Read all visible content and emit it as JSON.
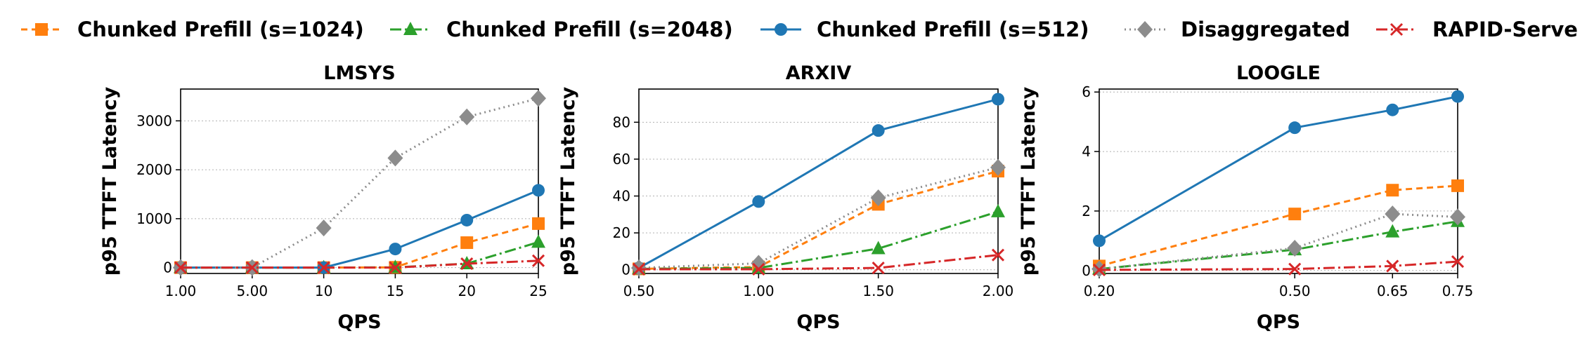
{
  "legend": [
    {
      "name": "Chunked Prefill (s=1024)",
      "color": "#ff7f0e",
      "dash": "9,6",
      "marker": "square"
    },
    {
      "name": "Chunked Prefill (s=2048)",
      "color": "#2ca02c",
      "dash": "16,5,3,5",
      "marker": "triangle"
    },
    {
      "name": "Chunked Prefill (s=512)",
      "color": "#1f77b4",
      "dash": "",
      "marker": "circle"
    },
    {
      "name": "Disaggregated",
      "color": "#8c8c8c",
      "dash": "2,5",
      "marker": "diamond"
    },
    {
      "name": "RAPID-Serve",
      "color": "#d62728",
      "dash": "16,5,3,5",
      "marker": "x"
    }
  ],
  "chart_data": [
    {
      "type": "line",
      "title": "LMSYS",
      "xlabel": "QPS",
      "ylabel": "p95 TTFT Latency",
      "x": [
        1,
        5,
        10,
        15,
        20,
        25
      ],
      "xticks": [
        "1.00",
        "5.00",
        "10",
        "15",
        "20",
        "25"
      ],
      "xscale": "categorical",
      "ylim": [
        -120,
        3650
      ],
      "yticks": [
        0,
        1000,
        2000,
        3000
      ],
      "yticklabels": [
        "0",
        "1000",
        "2000",
        "3000"
      ],
      "grid": "y",
      "series": [
        {
          "name": "Chunked Prefill (s=1024)",
          "values": [
            0,
            0,
            0,
            5,
            510,
            900
          ]
        },
        {
          "name": "Chunked Prefill (s=2048)",
          "values": [
            0,
            0,
            0,
            5,
            80,
            520
          ]
        },
        {
          "name": "Chunked Prefill (s=512)",
          "values": [
            0,
            0,
            0,
            380,
            970,
            1580
          ]
        },
        {
          "name": "Disaggregated",
          "values": [
            0,
            0,
            810,
            2240,
            3080,
            3460
          ]
        },
        {
          "name": "RAPID-Serve",
          "values": [
            0,
            0,
            0,
            0,
            80,
            140
          ]
        }
      ]
    },
    {
      "type": "line",
      "title": "ARXIV",
      "xlabel": "QPS",
      "ylabel": "p95 TTFT Latency",
      "x": [
        0.5,
        1.0,
        1.5,
        2.0
      ],
      "xticks": [
        "0.50",
        "1.00",
        "1.50",
        "2.00"
      ],
      "xscale": "linear",
      "ylim": [
        -2,
        98
      ],
      "yticks": [
        0,
        20,
        40,
        60,
        80
      ],
      "yticklabels": [
        "0",
        "20",
        "40",
        "60",
        "80"
      ],
      "grid": "y",
      "series": [
        {
          "name": "Chunked Prefill (s=1024)",
          "values": [
            0.5,
            1.5,
            35.5,
            53.5
          ]
        },
        {
          "name": "Chunked Prefill (s=2048)",
          "values": [
            0.5,
            1.0,
            11.5,
            31.5
          ]
        },
        {
          "name": "Chunked Prefill (s=512)",
          "values": [
            1.0,
            37.0,
            75.5,
            92.5
          ]
        },
        {
          "name": "Disaggregated",
          "values": [
            1.0,
            3.5,
            39.0,
            55.5
          ]
        },
        {
          "name": "RAPID-Serve",
          "values": [
            0.3,
            0.3,
            1.0,
            8.0
          ]
        }
      ]
    },
    {
      "type": "line",
      "title": "LOOGLE",
      "xlabel": "QPS",
      "ylabel": "p95 TTFT Latency",
      "x": [
        0.2,
        0.5,
        0.65,
        0.75
      ],
      "xticks": [
        "0.20",
        "0.50",
        "0.65",
        "0.75"
      ],
      "xscale": "linear",
      "ylim": [
        -0.1,
        6.1
      ],
      "yticks": [
        0,
        2,
        4,
        6
      ],
      "yticklabels": [
        "0",
        "2",
        "4",
        "6"
      ],
      "grid": "y",
      "series": [
        {
          "name": "Chunked Prefill (s=1024)",
          "values": [
            0.15,
            1.9,
            2.7,
            2.85
          ]
        },
        {
          "name": "Chunked Prefill (s=2048)",
          "values": [
            0.05,
            0.7,
            1.3,
            1.65
          ]
        },
        {
          "name": "Chunked Prefill (s=512)",
          "values": [
            1.0,
            4.8,
            5.4,
            5.85
          ]
        },
        {
          "name": "Disaggregated",
          "values": [
            0.05,
            0.75,
            1.9,
            1.8
          ]
        },
        {
          "name": "RAPID-Serve",
          "values": [
            0.02,
            0.05,
            0.15,
            0.3
          ]
        }
      ]
    }
  ]
}
